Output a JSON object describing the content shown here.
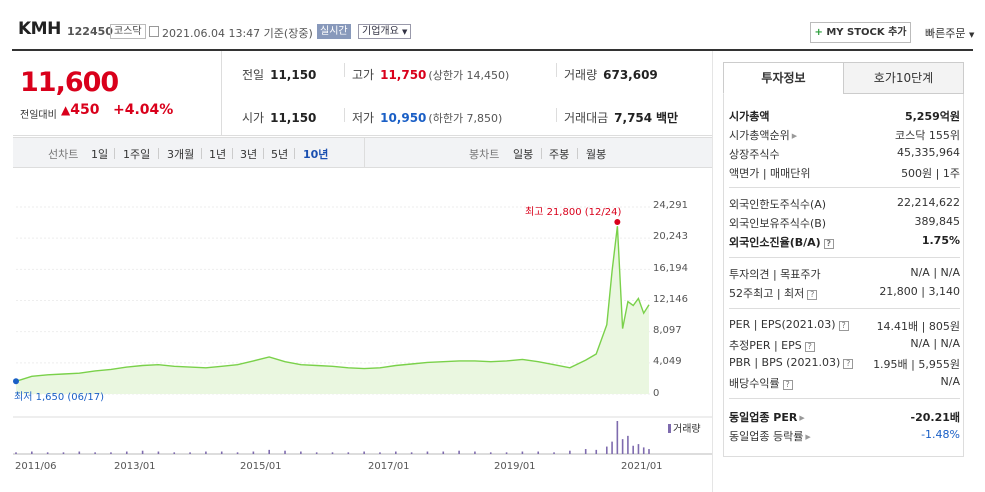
{
  "header": {
    "name": "KMH",
    "code": "122450",
    "market": "코스닥",
    "date": "2021.06.04 13:47 기준(장중)",
    "realtime": "실시간",
    "overview": "기업개요",
    "mystock": "MY STOCK 추가",
    "quick_order": "빠른주문"
  },
  "price": {
    "current": "11,600",
    "prev_label": "전일대비",
    "change": "450",
    "change_pct": "+4.04%",
    "up_color": "#d9001b"
  },
  "quote": {
    "prev": {
      "label": "전일",
      "value": "11,150"
    },
    "high": {
      "label": "고가",
      "value": "11,750",
      "sub": "(상한가 14,450)"
    },
    "volume": {
      "label": "거래량",
      "value": "673,609"
    },
    "open": {
      "label": "시가",
      "value": "11,150"
    },
    "low": {
      "label": "저가",
      "value": "10,950",
      "sub": "(하한가 7,850)"
    },
    "amount": {
      "label": "거래대금",
      "value": "7,754",
      "unit": "백만"
    }
  },
  "toolbar": {
    "line_title": "선차트",
    "line_periods": [
      "1일",
      "1주일",
      "3개월",
      "1년",
      "3년",
      "5년",
      "10년"
    ],
    "active_period": "10년",
    "candle_title": "봉차트",
    "candle_periods": [
      "일봉",
      "주봉",
      "월봉"
    ]
  },
  "chart_data": {
    "type": "line",
    "yticks": [
      "24,291",
      "20,243",
      "16,194",
      "12,146",
      "8,097",
      "4,049",
      "0"
    ],
    "ylim": [
      0,
      24291
    ],
    "xticks": [
      "2011/06",
      "2013/01",
      "2015/01",
      "2017/01",
      "2019/01",
      "2021/01"
    ],
    "high_label": "최고 21,800 (12/24)",
    "low_label": "최저 1,650 (06/17)",
    "volume_label": "거래량",
    "series": [
      {
        "x": [
          "2011-06",
          "2011-09",
          "2011-12",
          "2012-03",
          "2012-06",
          "2012-09",
          "2012-12",
          "2013-03",
          "2013-06",
          "2013-09",
          "2013-12",
          "2014-03",
          "2014-06",
          "2014-09",
          "2014-12",
          "2015-03",
          "2015-06",
          "2015-09",
          "2015-12",
          "2016-03",
          "2016-06",
          "2016-09",
          "2016-12",
          "2017-03",
          "2017-06",
          "2017-09",
          "2017-12",
          "2018-03",
          "2018-06",
          "2018-09",
          "2018-12",
          "2019-03",
          "2019-06",
          "2019-09",
          "2019-12",
          "2020-03",
          "2020-06",
          "2020-08",
          "2020-10",
          "2020-11",
          "2020-12",
          "2021-01",
          "2021-02",
          "2021-03",
          "2021-04",
          "2021-05",
          "2021-06"
        ],
        "y": [
          1650,
          2300,
          2500,
          2600,
          2700,
          3000,
          3200,
          3500,
          3700,
          3800,
          3600,
          3500,
          3400,
          3600,
          3800,
          4300,
          4800,
          4200,
          3800,
          3700,
          3600,
          3400,
          3300,
          3400,
          3700,
          3900,
          4100,
          4200,
          4300,
          4300,
          4200,
          4300,
          4500,
          4200,
          3800,
          3400,
          4400,
          5200,
          9000,
          16000,
          21800,
          8500,
          12000,
          11500,
          12400,
          10500,
          11600
        ]
      }
    ],
    "volume": [
      2,
      3,
      2,
      2,
      3,
      2,
      2,
      3,
      4,
      3,
      2,
      2,
      3,
      3,
      2,
      3,
      5,
      4,
      3,
      2,
      2,
      2,
      3,
      2,
      3,
      2,
      3,
      3,
      4,
      3,
      2,
      2,
      3,
      3,
      2,
      4,
      6,
      5,
      9,
      15,
      40,
      18,
      22,
      10,
      12,
      8,
      6
    ],
    "line_color": "#7ad14a",
    "high_color": "#d9001b",
    "low_color": "#1a5fc6",
    "volume_color": "#7e6bae"
  },
  "side": {
    "tabs": [
      "투자정보",
      "호가10단계"
    ],
    "rows1": [
      {
        "k": "시가총액",
        "v": "5,259억원"
      },
      {
        "k": "시가총액순위",
        "v": "코스닥 155위"
      },
      {
        "k": "상장주식수",
        "v": "45,335,964"
      },
      {
        "k": "액면가 | 매매단위",
        "v": "500원 | 1주"
      }
    ],
    "rows2": [
      {
        "k": "외국인한도주식수(A)",
        "v": "22,214,622"
      },
      {
        "k": "외국인보유주식수(B)",
        "v": "389,845"
      },
      {
        "k": "외국인소진율(B/A)",
        "v": "1.75%"
      }
    ],
    "rows3": [
      {
        "k": "투자의견 | 목표주가",
        "v": "N/A | N/A"
      },
      {
        "k": "52주최고 | 최저",
        "v": "21,800 | 3,140"
      }
    ],
    "rows4": [
      {
        "k": "PER | EPS(2021.03)",
        "v": "14.41배 | 805원"
      },
      {
        "k": "추정PER | EPS",
        "v": "N/A | N/A"
      },
      {
        "k": "PBR | BPS (2021.03)",
        "v": "1.95배 | 5,955원"
      },
      {
        "k": "배당수익률",
        "v": "N/A"
      }
    ],
    "rows5": [
      {
        "k": "동일업종 PER",
        "v": "-20.21배"
      },
      {
        "k": "동일업종 등락률",
        "v": "-1.48%"
      }
    ]
  }
}
